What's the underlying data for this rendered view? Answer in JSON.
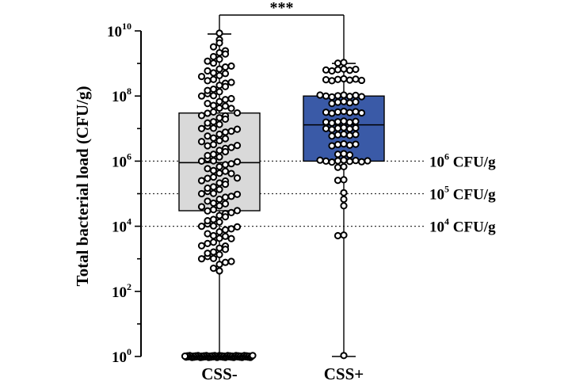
{
  "chart_data": {
    "type": "box",
    "ylabel": "Total bacterial load  (CFU/g)",
    "y_scale": "log10",
    "ylim": [
      1,
      10000000000
    ],
    "y_ticks": [
      {
        "value": 1,
        "base": "10",
        "exp": "0"
      },
      {
        "value": 100,
        "base": "10",
        "exp": "2"
      },
      {
        "value": 10000,
        "base": "10",
        "exp": "4"
      },
      {
        "value": 1000000,
        "base": "10",
        "exp": "6"
      },
      {
        "value": 100000000,
        "base": "10",
        "exp": "8"
      },
      {
        "value": 10000000000,
        "base": "10",
        "exp": "10"
      }
    ],
    "categories": [
      "CSS-",
      "CSS+"
    ],
    "boxes": [
      {
        "category": "CSS-",
        "whisker_low": 1,
        "q1": 30000,
        "median": 900000,
        "q3": 30000000,
        "whisker_high": 8000000000,
        "fill": "#d9d9d9",
        "points_log10": [
          0,
          0,
          0,
          0,
          0,
          0,
          0,
          0,
          0,
          0,
          0,
          0,
          0,
          0,
          0,
          0,
          0,
          0,
          0,
          0,
          0,
          0,
          0,
          0,
          0,
          0,
          0,
          0,
          0,
          0,
          0,
          0,
          0,
          0,
          0,
          0,
          0,
          0,
          0,
          0,
          0,
          0,
          0,
          0,
          0,
          0,
          0,
          0,
          0,
          0,
          0,
          0,
          0,
          0,
          0,
          0,
          0,
          0,
          9.9,
          9.7,
          9.6,
          9.5,
          9.4,
          9.3,
          9.2,
          9.1,
          9.0,
          8.9,
          8.8,
          8.7,
          8.6,
          8.5,
          8.4,
          8.3,
          8.2,
          8.1,
          8.0,
          7.9,
          7.8,
          7.7,
          7.6,
          7.5,
          7.4,
          7.3,
          7.2,
          7.1,
          7.0,
          6.9,
          6.8,
          6.7,
          6.6,
          6.5,
          6.4,
          6.3,
          6.2,
          6.1,
          6.0,
          5.9,
          5.8,
          5.7,
          5.6,
          5.5,
          5.4,
          5.3,
          5.2,
          5.1,
          5.0,
          4.9,
          4.8,
          4.7,
          4.6,
          4.5,
          4.4,
          4.3,
          4.2,
          4.1,
          4.0,
          3.9,
          3.8,
          3.7,
          3.6,
          3.5,
          3.4,
          3.3,
          3.2,
          3.1,
          3.0,
          2.9,
          2.8,
          2.7,
          2.6,
          9.3,
          9.1,
          8.9,
          8.7,
          8.5,
          8.3,
          8.1,
          7.9,
          7.7,
          7.5,
          7.3,
          7.1,
          6.9,
          6.7,
          6.5,
          6.3,
          6.1,
          5.9,
          5.7,
          5.5,
          5.3,
          5.1,
          4.9,
          4.7,
          4.5,
          4.3,
          4.1,
          3.9,
          3.7,
          3.5,
          3.3,
          3.1,
          2.9,
          8.8,
          8.4,
          8.0,
          7.6,
          7.2,
          6.8,
          6.4,
          6.0,
          5.6,
          5.2,
          4.8,
          4.4,
          4.0,
          3.6,
          3.2,
          8.6,
          8.2,
          7.8,
          7.4,
          7.0,
          6.6,
          6.2,
          5.8,
          5.4,
          5.0,
          4.6,
          4.2,
          3.8,
          3.4,
          3.0,
          7.5,
          7.0,
          6.5,
          6.0,
          5.5,
          5.0,
          4.5,
          4.0
        ]
      },
      {
        "category": "CSS+",
        "whisker_low": 1,
        "q1": 1000000,
        "median": 13000000,
        "q3": 100000000,
        "whisker_high": 1000000000,
        "fill": "#3a5aa7",
        "points_log10": [
          9.0,
          9.0,
          8.8,
          8.8,
          8.8,
          8.8,
          8.8,
          8.8,
          8.5,
          8.5,
          8.5,
          8.5,
          8.5,
          8.5,
          8.5,
          8.0,
          8.0,
          8.0,
          8.0,
          8.0,
          8.0,
          8.0,
          8.0,
          7.8,
          7.8,
          7.8,
          7.8,
          7.8,
          7.5,
          7.5,
          7.5,
          7.5,
          7.5,
          7.5,
          7.5,
          7.2,
          7.2,
          7.2,
          7.2,
          7.2,
          7.2,
          7.0,
          7.0,
          7.0,
          7.0,
          7.0,
          7.0,
          6.8,
          6.8,
          6.8,
          6.8,
          6.8,
          6.5,
          6.5,
          6.5,
          6.5,
          6.5,
          6.2,
          6.2,
          6.2,
          6.0,
          6.0,
          6.0,
          6.0,
          6.0,
          6.0,
          6.0,
          6.0,
          6.0,
          5.8,
          5.8,
          5.4,
          5.4,
          5.0,
          4.8,
          4.6,
          3.7,
          3.7,
          0
        ]
      }
    ],
    "reference_lines": [
      {
        "value": 1000000,
        "base": "10",
        "exp": "6",
        "unit": " CFU/g"
      },
      {
        "value": 100000,
        "base": "10",
        "exp": "5",
        "unit": " CFU/g"
      },
      {
        "value": 10000,
        "base": "10",
        "exp": "4",
        "unit": " CFU/g"
      }
    ],
    "significance": "***"
  }
}
